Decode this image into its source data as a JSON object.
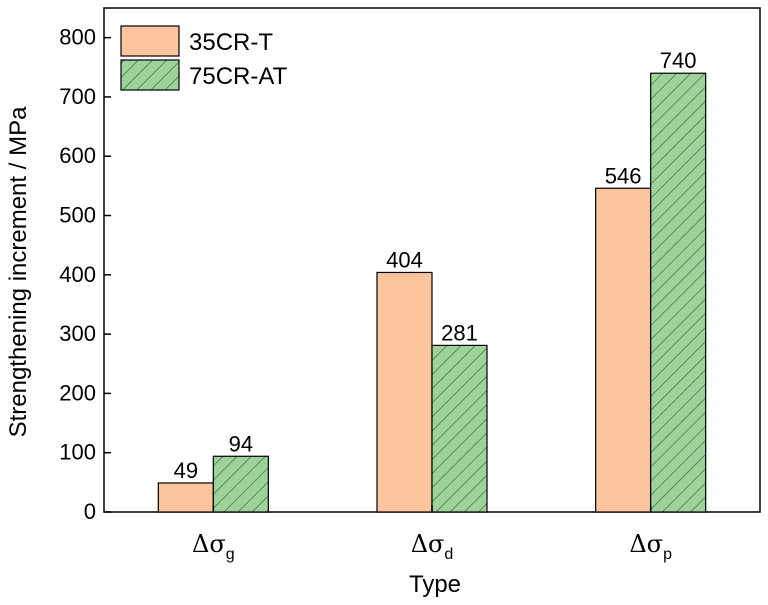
{
  "chart_data": {
    "type": "bar",
    "xlabel": "Type",
    "ylabel": "Strengthening increment / MPa",
    "ylim": [
      0,
      850
    ],
    "yticks": [
      0,
      100,
      200,
      300,
      400,
      500,
      600,
      700,
      800
    ],
    "categories": [
      {
        "symbol": "Δσ",
        "sub": "g"
      },
      {
        "symbol": "Δσ",
        "sub": "d"
      },
      {
        "symbol": "Δσ",
        "sub": "p"
      }
    ],
    "series": [
      {
        "name": "35CR-T",
        "values": [
          49,
          404,
          546
        ],
        "color": "#fbc49c",
        "pattern": "solid"
      },
      {
        "name": "75CR-AT",
        "values": [
          94,
          281,
          740
        ],
        "color": "#9fd19a",
        "pattern": "diagonal-hatch"
      }
    ],
    "data_labels": true,
    "legend_position": "top-left",
    "grid": false
  }
}
